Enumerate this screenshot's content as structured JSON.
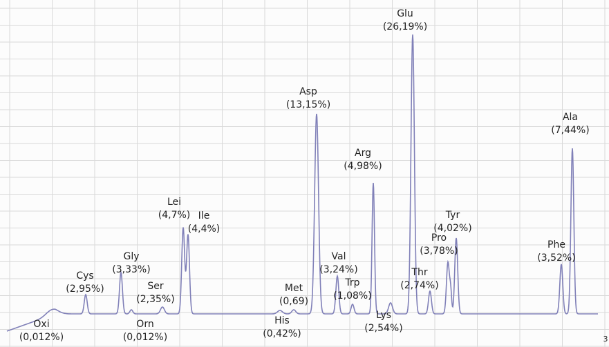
{
  "peaks": [
    {
      "name": "Oxi",
      "amount": "(0,012%)"
    },
    {
      "name": "Cys",
      "amount": "(2,95%)"
    },
    {
      "name": "Gly",
      "amount": "(3,33%)"
    },
    {
      "name": "Orn",
      "amount": "(0,012%)"
    },
    {
      "name": "Ser",
      "amount": "(2,35%)"
    },
    {
      "name": "Lei",
      "amount": "(4,7%)"
    },
    {
      "name": "Ile",
      "amount": "(4,4%)"
    },
    {
      "name": "His",
      "amount": "(0,42%)"
    },
    {
      "name": "Met",
      "amount": "(0,69)"
    },
    {
      "name": "Asp",
      "amount": "(13,15%)"
    },
    {
      "name": "Val",
      "amount": "(3,24%)"
    },
    {
      "name": "Trp",
      "amount": "(1,08%)"
    },
    {
      "name": "Arg",
      "amount": "(4,98%)"
    },
    {
      "name": "Lys",
      "amount": "(2,54%)"
    },
    {
      "name": "Glu",
      "amount": "(26,19%)"
    },
    {
      "name": "Thr",
      "amount": "(2,74%)"
    },
    {
      "name": "Pro",
      "amount": "(3,78%)"
    },
    {
      "name": "Tyr",
      "amount": "(4,02%)"
    },
    {
      "name": "Phe",
      "amount": "(3,52%)"
    },
    {
      "name": "Ala",
      "amount": "(7,44%)"
    }
  ],
  "page_marker": "3"
}
